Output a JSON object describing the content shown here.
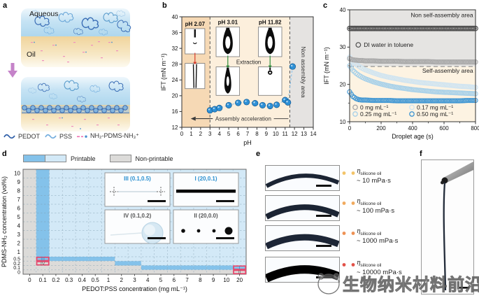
{
  "figure": {
    "panel_labels": {
      "a": "a",
      "b": "b",
      "c": "c",
      "d": "d",
      "e": "e",
      "f": "f"
    }
  },
  "panel_a": {
    "aqueous_label": "Aqueous",
    "oil_label": "Oil",
    "legend": {
      "pedot": "PEDOT",
      "pss": "PSS",
      "pdms": "NH₂-PDMS-NH₃⁺"
    }
  },
  "chart_data": [
    {
      "id": "b",
      "type": "scatter",
      "xlabel": "pH",
      "ylabel": "IFT (mN m⁻¹)",
      "xlim": [
        0,
        14
      ],
      "ylim": [
        12,
        40
      ],
      "xticks": [
        0,
        1,
        2,
        3,
        4,
        5,
        6,
        7,
        8,
        9,
        10,
        11,
        12,
        13,
        14
      ],
      "yticks": [
        12,
        16,
        20,
        24,
        28,
        32,
        36,
        40
      ],
      "regions": [
        {
          "name": "fast-assembly-area",
          "x0": 0,
          "x1": 3,
          "color": "#f6d9b5"
        },
        {
          "name": "assembly-area",
          "x0": 3,
          "x1": 11.5,
          "color": "#fcefdc"
        },
        {
          "name": "non-assembly-area",
          "x0": 11.5,
          "x1": 14,
          "color": "#e5e3e1"
        }
      ],
      "dashed_lines_x": [
        3,
        11.5
      ],
      "points": [
        [
          3.0,
          16.3
        ],
        [
          3.5,
          16.6
        ],
        [
          4.0,
          16.9
        ],
        [
          5.0,
          17.6
        ],
        [
          6.0,
          18.2
        ],
        [
          6.9,
          18.4
        ],
        [
          7.8,
          18.1
        ],
        [
          8.6,
          17.6
        ],
        [
          9.4,
          17.4
        ],
        [
          10.1,
          17.7
        ],
        [
          11.0,
          18.9
        ],
        [
          11.3,
          18.3
        ],
        [
          11.8,
          27.4
        ]
      ],
      "point_color": "#2e90d6",
      "trend_color": "#8cc3ea",
      "insets": [
        {
          "label": "pH 2.07",
          "arrow": "#d93b2b",
          "top_glyph": "needle",
          "bottom_glyph": "jet"
        },
        {
          "label": "pH 3.01",
          "arrow": "#2e8b3a",
          "top_glyph": "drop",
          "bottom_glyph": "dropS"
        },
        {
          "label": "pH 11.82",
          "arrow": "#2e8b3a",
          "top_glyph": "drop",
          "bottom_glyph": "dropT"
        }
      ],
      "extraction_label": "Extraction",
      "acceleration_label": "Assembly acceleration",
      "non_assembly_label": "Non assembly area"
    },
    {
      "id": "c",
      "type": "scatter",
      "xlabel": "Droplet age (s)",
      "ylabel": "IFT (mN m⁻¹)",
      "xlim": [
        0,
        800
      ],
      "ylim": [
        10,
        40
      ],
      "xticks": [
        0,
        200,
        400,
        600,
        800
      ],
      "yticks": [
        10,
        20,
        30,
        40
      ],
      "dashed_line_y": 24.8,
      "top_area": {
        "label": "Non self-assembly area",
        "color": "#e5e4e2"
      },
      "bottom_area": {
        "label": "Self-assembly area",
        "color": "#fdf3e2"
      },
      "annotation": "DI water in toluene",
      "x": [
        0,
        20,
        40,
        60,
        80,
        100,
        150,
        200,
        250,
        300,
        350,
        400,
        450,
        500,
        550,
        600,
        650,
        700,
        750,
        800
      ],
      "series": [
        {
          "name": "DI water in toluene",
          "color": "#4f4f4f",
          "y": [
            35,
            35,
            35,
            35,
            35,
            35,
            35,
            35,
            35,
            35,
            35,
            35,
            35,
            35,
            35,
            35,
            35,
            35,
            35,
            35
          ]
        },
        {
          "name": "0 mg mL⁻¹",
          "color": "#a8a8a8",
          "y": [
            26.9,
            26.6,
            26.5,
            26.4,
            26.4,
            26.3,
            26.3,
            26.2,
            26.2,
            26.2,
            26.1,
            26.1,
            26.1,
            26.1,
            26.0,
            26.0,
            26.0,
            26.0,
            26.0,
            26.0
          ]
        },
        {
          "name": "0.17 mg mL⁻¹",
          "color": "#cfe4f1",
          "y": [
            27.3,
            26.2,
            25.4,
            24.8,
            24.3,
            23.9,
            23.1,
            22.4,
            21.9,
            21.5,
            21.1,
            20.8,
            20.5,
            20.3,
            20.1,
            19.9,
            19.7,
            19.5,
            19.4,
            19.2
          ]
        },
        {
          "name": "0.25 mg mL⁻¹",
          "color": "#a6d0e9",
          "y": [
            25.0,
            23.8,
            23.0,
            22.4,
            21.9,
            21.5,
            20.7,
            20.1,
            19.6,
            19.2,
            18.9,
            18.6,
            18.4,
            18.2,
            18.0,
            17.9,
            17.8,
            17.7,
            17.6,
            17.5
          ]
        },
        {
          "name": "0.50 mg mL⁻¹",
          "color": "#3f96d3",
          "y": [
            18.0,
            16.8,
            16.2,
            15.9,
            15.8,
            15.8,
            15.7,
            15.7,
            15.7,
            15.6,
            15.6,
            15.6,
            15.6,
            15.6,
            15.6,
            15.6,
            15.6,
            15.6,
            15.7,
            15.7
          ]
        }
      ],
      "legend": [
        {
          "label": "0 mg mL⁻¹",
          "color": "#a8a8a8"
        },
        {
          "label": "0.17 mg mL⁻¹",
          "color": "#cfe4f1"
        },
        {
          "label": "0.25 mg mL⁻¹",
          "color": "#a6d0e9"
        },
        {
          "label": "0.50 mg mL⁻¹",
          "color": "#3f96d3"
        }
      ]
    },
    {
      "id": "d",
      "type": "heatmap",
      "xlabel": "PEDOT:PSS concentration (mg mL⁻¹)",
      "ylabel": "PDMS-NH₂ concentration (vol%)",
      "printable_label": "Printable",
      "nonprintable_label": "Non-printable",
      "x_categories": [
        "0",
        "0.1",
        "0.2",
        "0.3",
        "0.4",
        "0.5",
        "1",
        "2",
        "3",
        "4",
        "5",
        "6",
        "7",
        "8",
        "9",
        "10",
        "20"
      ],
      "y_categories_top_down": [
        "10",
        "9",
        "8",
        "7",
        "6",
        "5",
        "4",
        "3",
        "2",
        "1",
        "0.5",
        "0.2",
        "0.1",
        "0"
      ],
      "row_heights": [
        1,
        1,
        1,
        1,
        1,
        1,
        1,
        1,
        1,
        1,
        0.5,
        0.5,
        0.5,
        0.5
      ],
      "state_colors": {
        "0": "#dcdbd9",
        "1": "#d3e9f7",
        "2": "#84c2ea"
      },
      "cells": [
        [
          0,
          2,
          1,
          1,
          1,
          1,
          1,
          1,
          1,
          1,
          1,
          1,
          1,
          1,
          1,
          1,
          1
        ],
        [
          0,
          2,
          1,
          1,
          1,
          1,
          1,
          1,
          1,
          1,
          1,
          1,
          1,
          1,
          1,
          1,
          1
        ],
        [
          0,
          2,
          1,
          1,
          1,
          1,
          1,
          1,
          1,
          1,
          1,
          1,
          1,
          1,
          1,
          1,
          1
        ],
        [
          0,
          2,
          1,
          1,
          1,
          1,
          1,
          1,
          1,
          1,
          1,
          1,
          1,
          1,
          1,
          1,
          1
        ],
        [
          0,
          2,
          1,
          1,
          1,
          1,
          1,
          1,
          1,
          1,
          1,
          1,
          1,
          1,
          1,
          1,
          1
        ],
        [
          0,
          2,
          1,
          1,
          1,
          1,
          1,
          1,
          1,
          1,
          1,
          1,
          1,
          1,
          1,
          1,
          1
        ],
        [
          0,
          2,
          1,
          1,
          1,
          1,
          1,
          1,
          1,
          1,
          1,
          1,
          1,
          1,
          1,
          1,
          1
        ],
        [
          0,
          2,
          1,
          1,
          1,
          1,
          1,
          1,
          1,
          1,
          1,
          1,
          1,
          1,
          1,
          1,
          1
        ],
        [
          0,
          2,
          1,
          1,
          1,
          1,
          1,
          1,
          1,
          1,
          1,
          1,
          1,
          1,
          1,
          1,
          1
        ],
        [
          0,
          2,
          1,
          1,
          1,
          1,
          1,
          1,
          1,
          1,
          1,
          1,
          1,
          1,
          1,
          1,
          1
        ],
        [
          0,
          2,
          2,
          2,
          2,
          2,
          2,
          1,
          1,
          1,
          1,
          1,
          1,
          1,
          1,
          1,
          1
        ],
        [
          0,
          0,
          0,
          0,
          0,
          0,
          0,
          2,
          2,
          1,
          1,
          1,
          1,
          1,
          1,
          1,
          1
        ],
        [
          0,
          0,
          0,
          0,
          0,
          0,
          0,
          0,
          0,
          2,
          2,
          2,
          2,
          2,
          2,
          2,
          2
        ],
        [
          0,
          0,
          0,
          0,
          0,
          0,
          0,
          0,
          0,
          0,
          0,
          0,
          0,
          0,
          0,
          0,
          0
        ]
      ],
      "marker_box_color": "#e8466b",
      "markers": [
        {
          "label": "III",
          "col": 1,
          "row": 10,
          "text_color": "#2a8fd0"
        },
        {
          "label": "IV",
          "col": 1,
          "row": 11,
          "text_color": "#6b6b6b"
        },
        {
          "label": "I",
          "col": 16,
          "row": 12,
          "text_color": "#2a8fd0"
        },
        {
          "label": "II",
          "col": 16,
          "row": 13,
          "text_color": "#6b6b6b"
        }
      ],
      "insets": [
        {
          "title": "III (0.1,0.5)",
          "title_color": "#2a8fd0",
          "kind": "fiber-faint"
        },
        {
          "title": "I (20,0.1)",
          "title_color": "#2a8fd0",
          "kind": "line-thick"
        },
        {
          "title": "IV (0.1,0.2)",
          "title_color": "#555555",
          "kind": "blob"
        },
        {
          "title": "II (20,0.0)",
          "title_color": "#555555",
          "kind": "dots"
        }
      ]
    }
  ],
  "panel_e": {
    "items": [
      {
        "eta": "η",
        "sub": "silicone oil",
        "value": "~ 10 mPa·s",
        "dot": "#f3c469"
      },
      {
        "eta": "η",
        "sub": "silicone oil",
        "value": "~ 100 mPa·s",
        "dot": "#f1aa5e"
      },
      {
        "eta": "η",
        "sub": "silicone oil",
        "value": "~ 1000 mPa·s",
        "dot": "#ee9154"
      },
      {
        "eta": "η",
        "sub": "silicone oil",
        "value": "~ 10000 mPa·s",
        "dot": "#e25148"
      }
    ]
  },
  "watermark": {
    "text": "生物纳米材料前沿"
  }
}
